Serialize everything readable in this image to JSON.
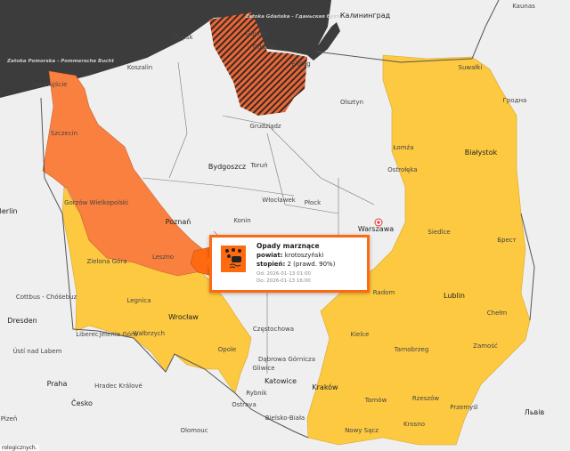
{
  "map": {
    "colors": {
      "sea": "#3c3c3c",
      "land": "#efefef",
      "level3": "#fa8040",
      "level3_selected": "#ff6a10",
      "level2": "#fcc940",
      "hatched": "#e8673a"
    },
    "sea_labels": [
      "Zatoka Pomorska - Pommersche Bucht",
      "Zatoka Gdańska - Гданьская бухта"
    ],
    "cities": [
      "Świnoujście",
      "Szczecin",
      "Słupsk",
      "Koszalin",
      "Gdynia",
      "Gdańsk",
      "Elbląg",
      "Калининград",
      "Olsztyn",
      "Suwałki",
      "Гродна",
      "Grudziądz",
      "Bydgoszcz",
      "Toruń",
      "Łomża",
      "Białystok",
      "Ostrołęka",
      "Gorzów Wielkopolski",
      "Berlin",
      "Włocławek",
      "Poznań",
      "Płock",
      "Konin",
      "Warszawa",
      "Siedlce",
      "Брест",
      "Zielona Góra",
      "Leszno",
      "Cottbus - Chóśebuz",
      "Radom",
      "Lublin",
      "Dresden",
      "Legnica",
      "Wrocław",
      "Chełm",
      "Kielce",
      "Jelenia Góra",
      "Wałbrzych",
      "Częstochowa",
      "Liberec",
      "Opole",
      "Zamość",
      "Ústí nad Labem",
      "Tarnobrzeg",
      "Gliwice",
      "Dąbrowa Górnicza",
      "Katowice",
      "Praha",
      "Hradec Králové",
      "Kraków",
      "Rybnik",
      "Česko",
      "Ostrava",
      "Tarnów",
      "Rzeszów",
      "Przemyśl",
      "Bielsko-Biała",
      "Львів",
      "Plzeň",
      "Nowy Sącz",
      "Krosno",
      "Olomouc",
      "Kaunas"
    ],
    "location_marker": "target-icon"
  },
  "popup": {
    "icon": "freezing-rain-icon",
    "title": "Opady marznące",
    "county_label": "powiat:",
    "county_value": "krotoszyński",
    "level_label": "stopień:",
    "level_value": "2 (prawd. 90%)",
    "from": "Od: 2026-01-13 01:00",
    "to": "Do: 2026-01-13 16:00"
  },
  "attribution": "rologicznych."
}
